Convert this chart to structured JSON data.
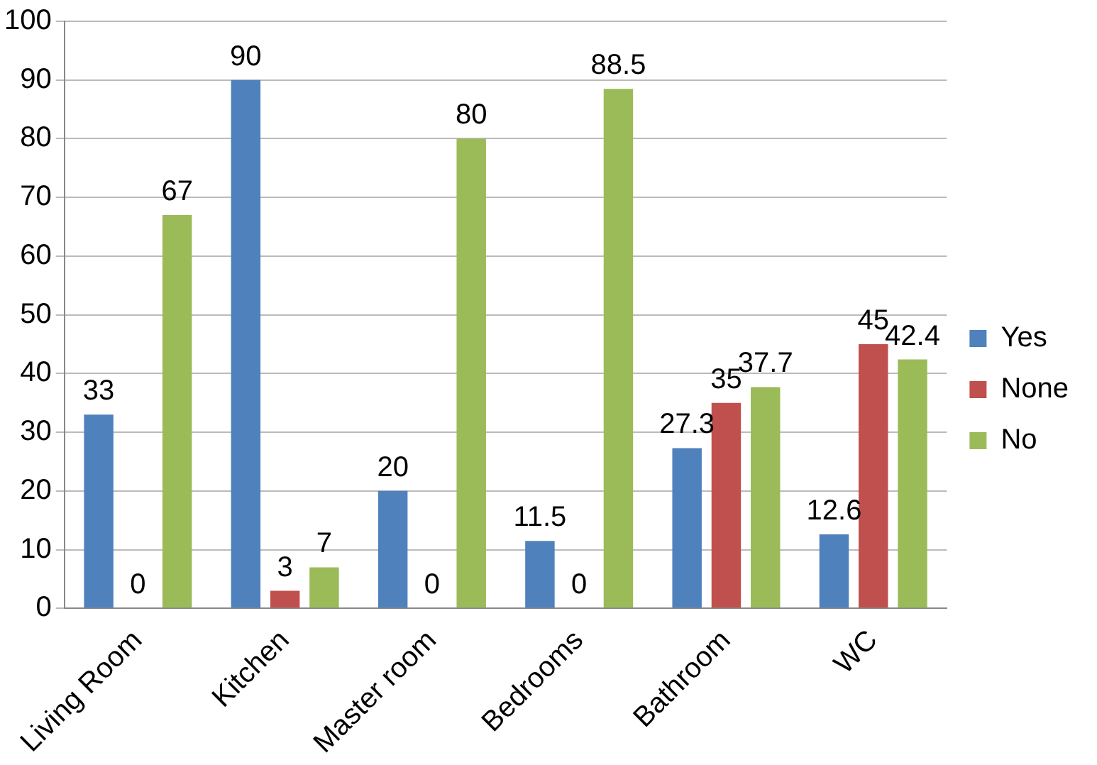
{
  "chart_data": {
    "type": "bar",
    "categories": [
      "Living Room",
      "Kitchen",
      "Master room",
      "Bedrooms",
      "Bathroom",
      "WC"
    ],
    "series": [
      {
        "name": "Yes",
        "color": "#4f81bd",
        "values": [
          33,
          90,
          20,
          11.5,
          27.3,
          12.6
        ]
      },
      {
        "name": "None",
        "color": "#c0504d",
        "values": [
          0,
          3,
          0,
          0,
          35,
          45
        ]
      },
      {
        "name": "No",
        "color": "#9bbb59",
        "values": [
          67,
          7,
          80,
          88.5,
          37.7,
          42.4
        ]
      }
    ],
    "ylim": [
      0,
      100
    ],
    "yticks": [
      0,
      10,
      20,
      30,
      40,
      50,
      60,
      70,
      80,
      90,
      100
    ],
    "grid": "y",
    "legend": "right",
    "data_labels": true
  }
}
